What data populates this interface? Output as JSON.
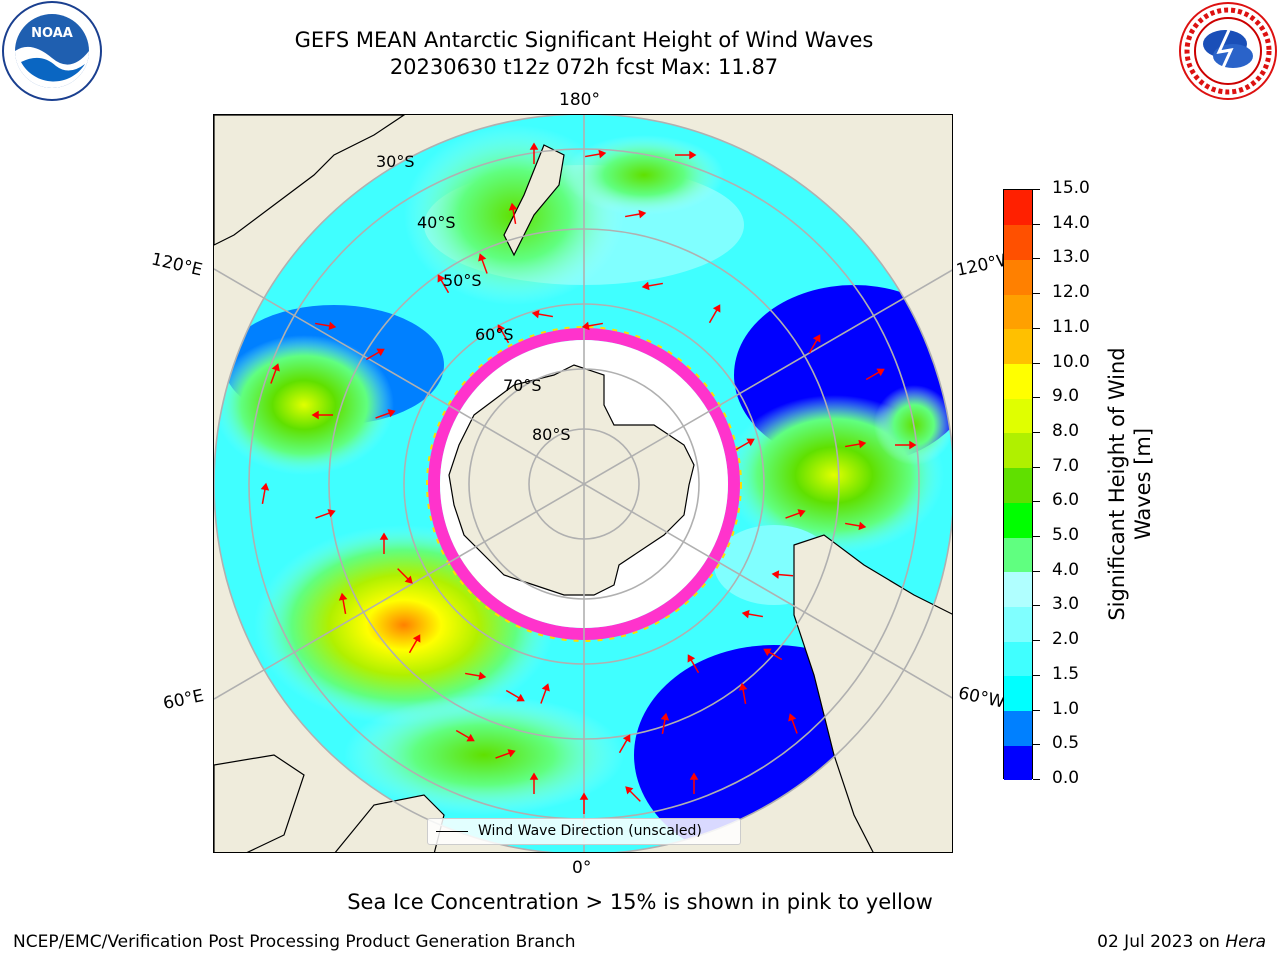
{
  "header": {
    "title_line1": "GEFS MEAN Antarctic Significant Height of Wind Waves",
    "title_line2": "20230630 t12z 072h fcst   Max: 11.87"
  },
  "logos": {
    "left": {
      "name": "noaa-logo",
      "text": "NOAA",
      "ring_text": "NATIONAL OCEANIC AND ATMOSPHERIC ADMINISTRATION · U.S. DEPARTMENT OF COMMERCE"
    },
    "right": {
      "name": "nws-logo",
      "ring_text": "NATIONAL WEATHER SERVICE"
    }
  },
  "map": {
    "projection": "south-polar-stereographic",
    "longitude_labels": {
      "top": "180°",
      "bottom": "0°",
      "upper_left": "120°E",
      "upper_right": "120°W",
      "lower_left": "60°E",
      "lower_right": "60°W"
    },
    "latitude_labels": [
      "30°S",
      "40°S",
      "50°S",
      "60°S",
      "70°S",
      "80°S"
    ],
    "legend": {
      "label": "Wind Wave Direction (unscaled)"
    },
    "colors": {
      "land": "#efecdc",
      "ocean_no_data": "#ffffff",
      "grid": "#b0b0b0",
      "arrow": "#ff0000",
      "sea_ice": "#ff33cc",
      "sea_ice_edge": "#ffdd00"
    }
  },
  "colorbar": {
    "title_line1": "Significant Height of Wind",
    "title_line2": "Waves [m]",
    "ticks": [
      "0.0",
      "0.5",
      "1.0",
      "1.5",
      "2.0",
      "3.0",
      "4.0",
      "5.0",
      "6.0",
      "7.0",
      "8.0",
      "9.0",
      "10.0",
      "11.0",
      "12.0",
      "13.0",
      "14.0",
      "15.0"
    ],
    "colors": [
      "#0000ff",
      "#0080ff",
      "#00ffff",
      "#40ffff",
      "#80ffff",
      "#b0ffff",
      "#60ff80",
      "#00ff00",
      "#60e000",
      "#b0f000",
      "#e0ff00",
      "#ffff00",
      "#ffc000",
      "#ffa000",
      "#ff8000",
      "#ff5000",
      "#ff2000"
    ]
  },
  "note": "Sea Ice Concentration > 15% is shown in pink to yellow",
  "footer": {
    "left": "NCEP/EMC/Verification Post Processing Product Generation Branch",
    "right_prefix": "02 Jul 2023 on ",
    "right_host": "Hera"
  }
}
